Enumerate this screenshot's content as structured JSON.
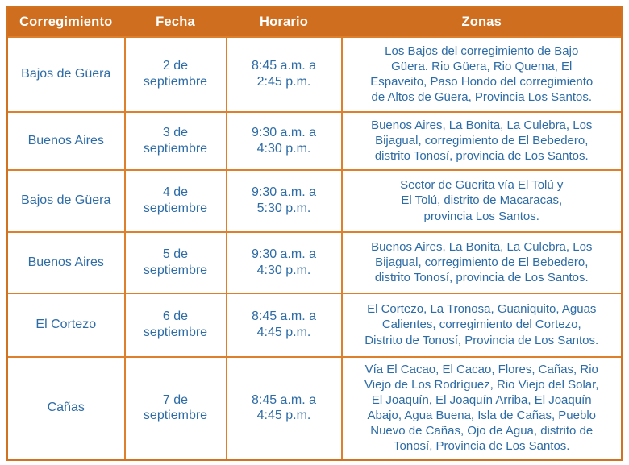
{
  "colors": {
    "header_bg": "#ce6e1e",
    "header_text": "#ffffff",
    "grid_border": "#dd7f2b",
    "outer_border": "#d2711f",
    "cell_text": "#2e6ca6",
    "page_bg": "#ffffff"
  },
  "table": {
    "columns": [
      "Corregimiento",
      "Fecha",
      "Horario",
      "Zonas"
    ],
    "rows": [
      {
        "corregimiento": "Bajos de Güera",
        "fecha": "2 de\nseptiembre",
        "horario": "8:45 a.m. a\n2:45 p.m.",
        "zonas": "Los Bajos del corregimiento de Bajo\nGüera.  Rio Güera, Rio Quema, El\nEspaveito, Paso Hondo del corregimiento\nde Altos de Güera, Provincia Los Santos."
      },
      {
        "corregimiento": "Buenos Aires",
        "fecha": "3 de\nseptiembre",
        "horario": "9:30 a.m. a\n4:30 p.m.",
        "zonas": "Buenos Aires, La Bonita, La Culebra, Los\nBijagual, corregimiento de El Bebedero,\ndistrito Tonosí, provincia de Los Santos."
      },
      {
        "corregimiento": "Bajos de Güera",
        "fecha": "4 de\nseptiembre",
        "horario": "9:30 a.m. a\n5:30 p.m.",
        "zonas": "Sector de Güerita vía El Tolú y\nEl Tolú, distrito de Macaracas,\nprovincia Los Santos."
      },
      {
        "corregimiento": "Buenos Aires",
        "fecha": "5 de\nseptiembre",
        "horario": "9:30 a.m. a\n4:30 p.m.",
        "zonas": "Buenos Aires, La Bonita, La Culebra, Los\nBijagual, corregimiento de El Bebedero,\ndistrito Tonosí, provincia de Los Santos."
      },
      {
        "corregimiento": "El Cortezo",
        "fecha": "6 de\nseptiembre",
        "horario": "8:45 a.m. a\n4:45 p.m.",
        "zonas": "El Cortezo, La Tronosa, Guaniquito, Aguas\nCalientes, corregimiento del Cortezo,\nDistrito de Tonosí, Provincia de Los Santos."
      },
      {
        "corregimiento": "Cañas",
        "fecha": "7 de\nseptiembre",
        "horario": "8:45 a.m. a\n4:45 p.m.",
        "zonas": "Vía El Cacao, El Cacao, Flores, Cañas, Rio\nViejo de Los Rodríguez, Rio Viejo del Solar,\nEl Joaquín, El Joaquín Arriba, El Joaquín\nAbajo, Agua Buena, Isla de Cañas, Pueblo\nNuevo de Cañas, Ojo de Agua, distrito de\nTonosí, Provincia de Los Santos."
      }
    ]
  }
}
